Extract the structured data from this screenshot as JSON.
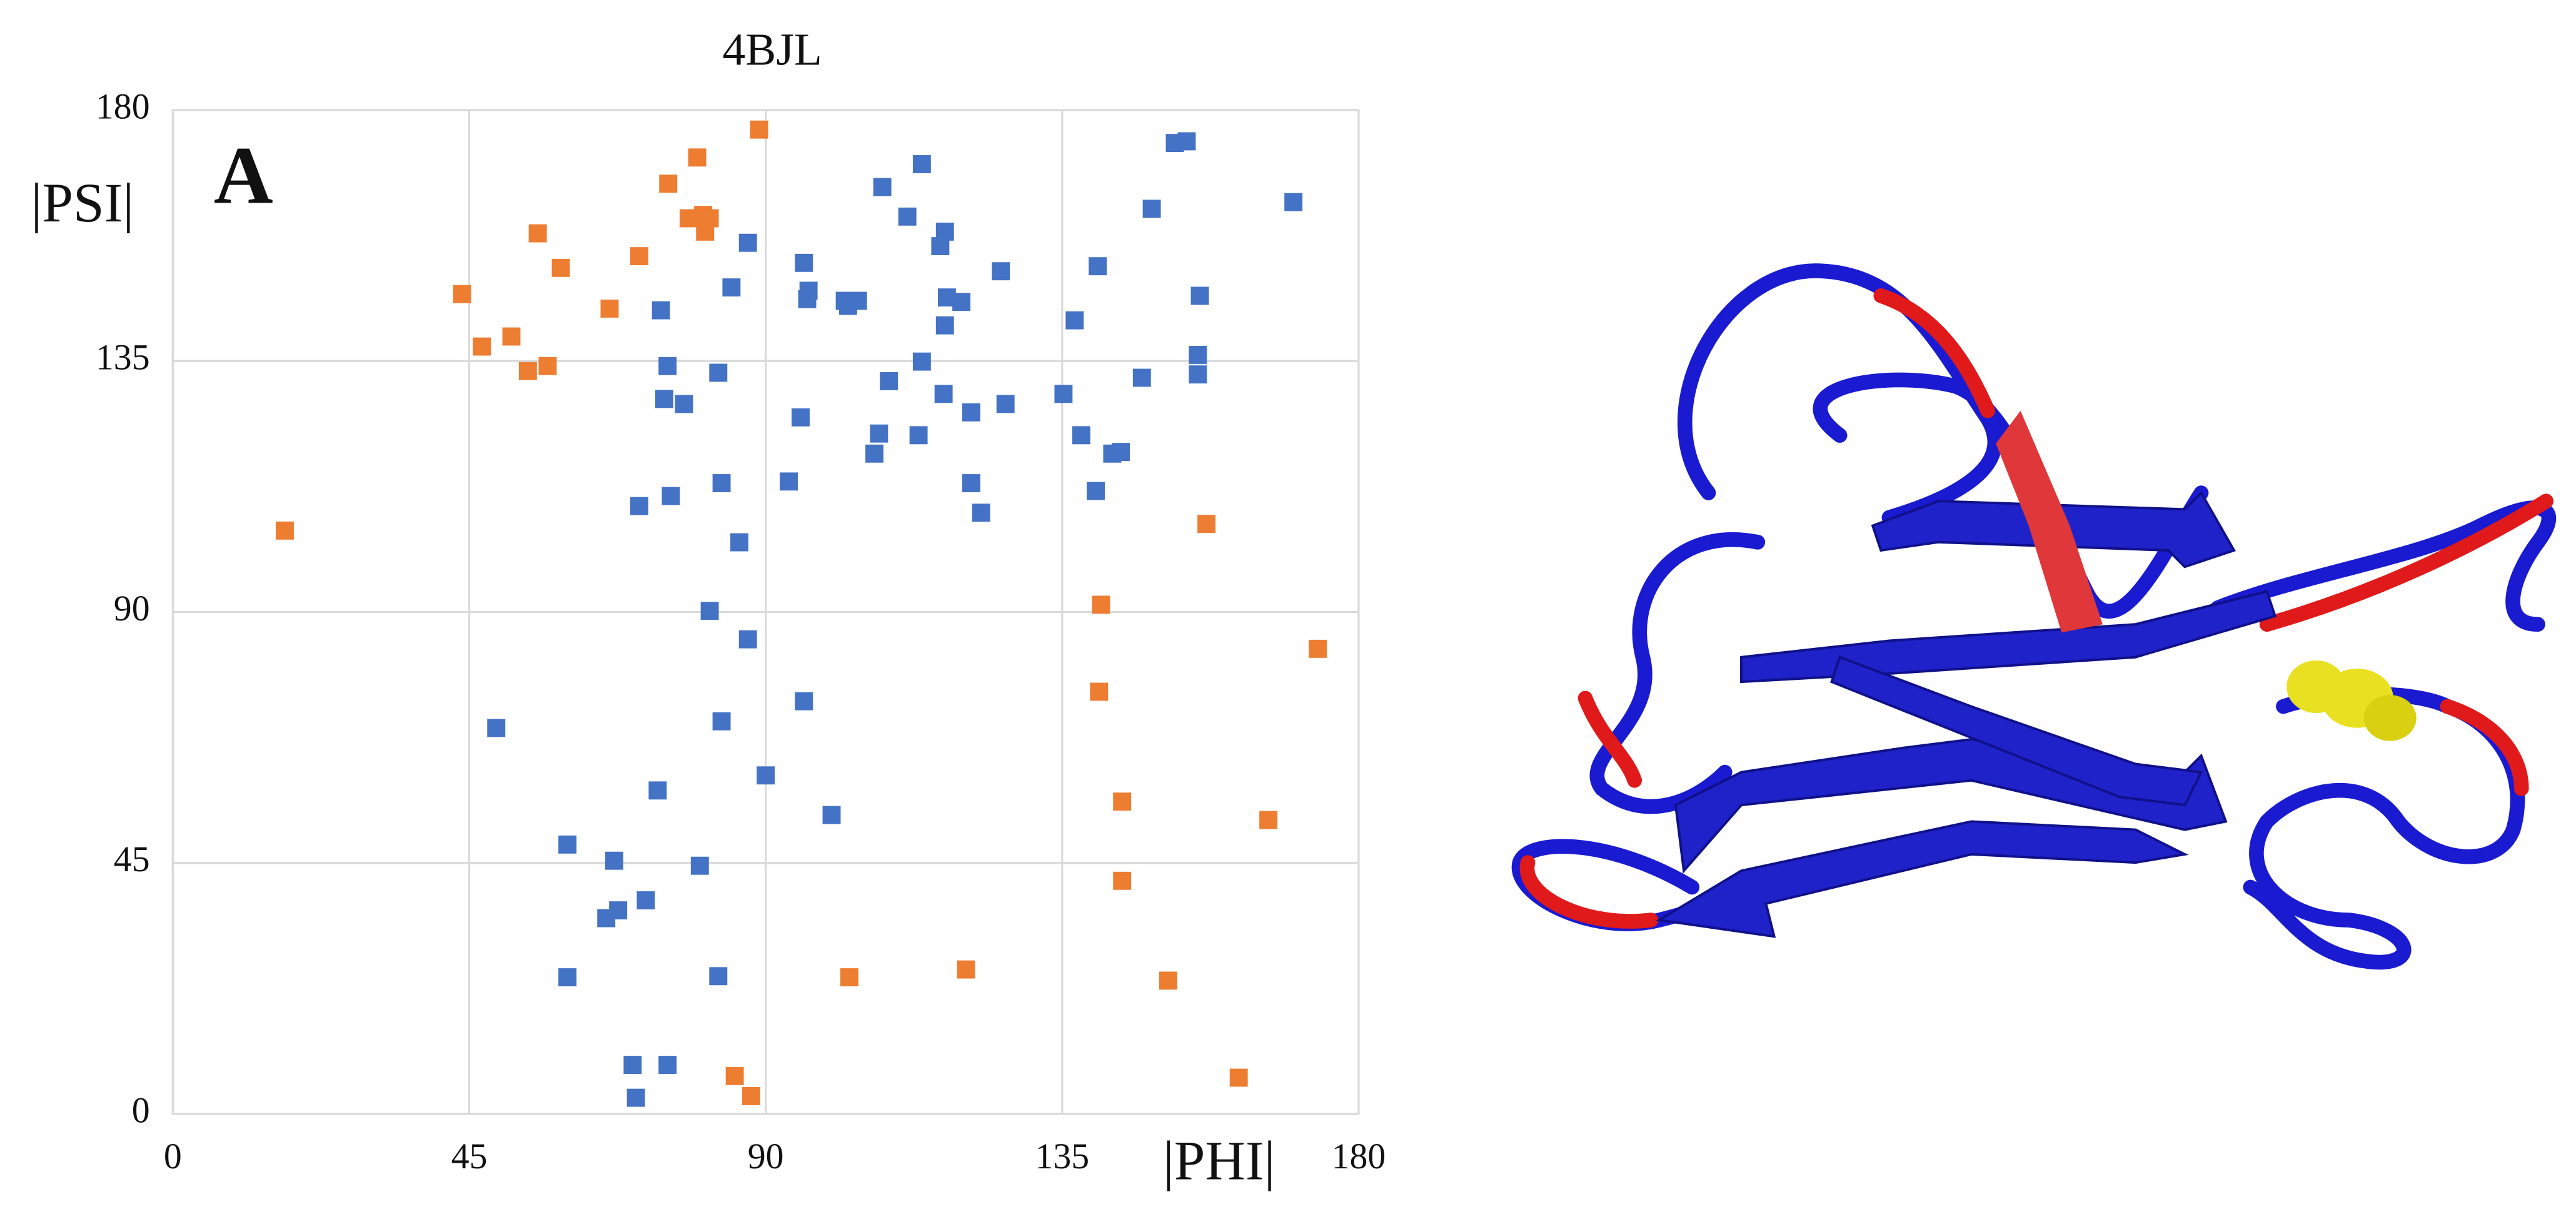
{
  "chart_data": {
    "type": "scatter",
    "title": "4BJL",
    "panel_label": "A",
    "xlabel": "|PHI|",
    "ylabel": "|PSI|",
    "xlim": [
      0,
      180
    ],
    "ylim": [
      0,
      180
    ],
    "xticks": [
      0,
      45,
      90,
      135,
      180
    ],
    "yticks": [
      0,
      45,
      90,
      135,
      180
    ],
    "grid": true,
    "marker": "square",
    "series": [
      {
        "color": "#ed7d31",
        "x": [
          89.0,
          79.6,
          75.2,
          78.3,
          80.5,
          81.5,
          80.8,
          55.4,
          70.8,
          58.9,
          43.9,
          66.3,
          51.4,
          46.9,
          53.9,
          56.9,
          17.0,
          156.9,
          140.9,
          173.8,
          140.6,
          144.1,
          166.3,
          144.1,
          120.4,
          102.7,
          151.1,
          85.3,
          87.8,
          161.8
        ],
        "values": [
          176.5,
          171.5,
          166.8,
          160.6,
          161.2,
          160.6,
          158.2,
          157.9,
          153.8,
          151.7,
          147.0,
          144.4,
          139.4,
          137.6,
          133.2,
          134.1,
          104.6,
          105.8,
          91.3,
          83.4,
          75.7,
          56.0,
          52.7,
          41.8,
          25.9,
          24.5,
          23.9,
          6.8,
          3.2,
          6.5
        ]
      },
      {
        "color": "#4472c4",
        "x": [
          153.9,
          152.1,
          113.7,
          107.7,
          170.1,
          148.6,
          111.5,
          117.2,
          116.5,
          87.3,
          95.8,
          125.7,
          140.4,
          84.8,
          96.5,
          96.3,
          102.0,
          104.0,
          102.5,
          117.5,
          119.7,
          155.9,
          74.1,
          136.9,
          117.2,
          155.6,
          113.7,
          75.1,
          82.8,
          155.6,
          147.1,
          108.7,
          117.0,
          135.2,
          74.6,
          77.6,
          126.4,
          121.2,
          95.3,
          137.9,
          107.2,
          113.2,
          106.5,
          143.9,
          142.6,
          93.5,
          83.3,
          121.2,
          140.1,
          75.6,
          70.8,
          122.7,
          86.0,
          81.5,
          87.3,
          95.8,
          49.1,
          83.3,
          90.0,
          73.6,
          100.0,
          59.9,
          67.0,
          80.0,
          71.8,
          67.6,
          65.8,
          59.9,
          82.8,
          75.1,
          69.8,
          70.3
        ],
        "values": [
          174.4,
          174.1,
          170.3,
          166.2,
          163.5,
          162.3,
          160.9,
          158.2,
          155.6,
          156.2,
          152.6,
          151.1,
          152.0,
          148.2,
          147.6,
          146.1,
          145.8,
          145.8,
          144.9,
          146.4,
          145.6,
          146.7,
          144.1,
          142.3,
          141.4,
          136.1,
          134.9,
          134.1,
          132.9,
          132.6,
          132.0,
          131.4,
          129.1,
          129.1,
          128.2,
          127.3,
          127.3,
          125.8,
          124.9,
          121.7,
          122.0,
          121.7,
          118.4,
          118.7,
          118.4,
          113.4,
          113.1,
          113.1,
          111.7,
          110.8,
          109.0,
          107.8,
          102.5,
          90.2,
          85.1,
          74.0,
          69.2,
          70.4,
          60.7,
          58.0,
          53.6,
          48.3,
          45.4,
          44.5,
          38.3,
          36.5,
          35.1,
          24.5,
          24.7,
          8.8,
          8.8,
          2.9
        ]
      }
    ]
  }
}
